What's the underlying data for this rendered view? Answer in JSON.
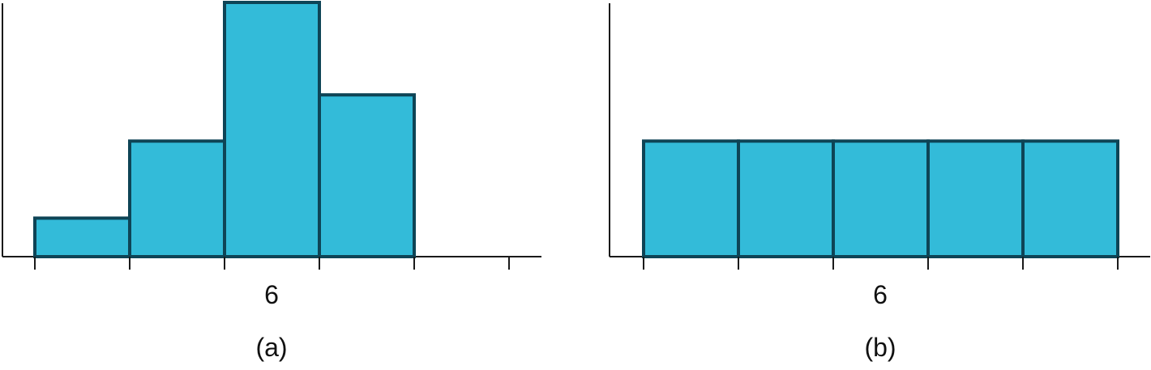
{
  "chart_data": [
    {
      "type": "bar",
      "panel_label": "(a)",
      "center_label": "6",
      "bin_edges": [
        1,
        2,
        3,
        4,
        5,
        6
      ],
      "values": [
        1,
        3,
        6.6,
        4.2,
        0
      ],
      "ylim": [
        0,
        6.6
      ],
      "grid": false,
      "colors": {
        "fill": "#33BBD9",
        "stroke": "#0E4456",
        "axis": "#1a1a1a"
      }
    },
    {
      "type": "bar",
      "panel_label": "(b)",
      "center_label": "6",
      "bin_edges": [
        1,
        2,
        3,
        4,
        5,
        6
      ],
      "values": [
        3,
        3,
        3,
        3,
        3
      ],
      "ylim": [
        0,
        6.6
      ],
      "grid": false,
      "colors": {
        "fill": "#33BBD9",
        "stroke": "#0E4456",
        "axis": "#1a1a1a"
      }
    }
  ]
}
